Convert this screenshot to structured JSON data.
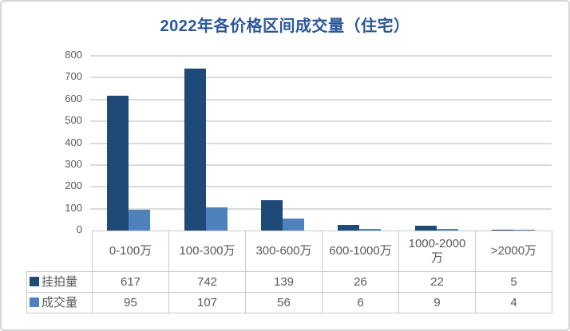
{
  "chart_data": {
    "type": "bar",
    "title": "2022年各价格区间成交量（住宅）",
    "categories": [
      "0-100万",
      "100-300万",
      "300-600万",
      "600-1000万",
      "1000-2000万",
      ">2000万"
    ],
    "series": [
      {
        "name": "挂拍量",
        "color": "#1F4977",
        "values": [
          617,
          742,
          139,
          26,
          22,
          5
        ]
      },
      {
        "name": "成交量",
        "color": "#4F81BD",
        "values": [
          95,
          107,
          56,
          6,
          9,
          4
        ]
      }
    ],
    "xlabel": "",
    "ylabel": "",
    "ylim": [
      0,
      800
    ],
    "yticks": [
      0,
      100,
      200,
      300,
      400,
      500,
      600,
      700,
      800
    ],
    "grid": true,
    "legend_position": "data-table-row-headers",
    "data_table_shown": true
  },
  "colors": {
    "title_text": "#2B579A",
    "axis_text": "#595959",
    "table_text": "#595959",
    "gridline": "#DBDBDB",
    "table_border": "#C9C9C9",
    "frame_border": "#D5D5D5",
    "background": "#FFFFFF",
    "series_1": "#1F4977",
    "series_2": "#4F81BD"
  }
}
